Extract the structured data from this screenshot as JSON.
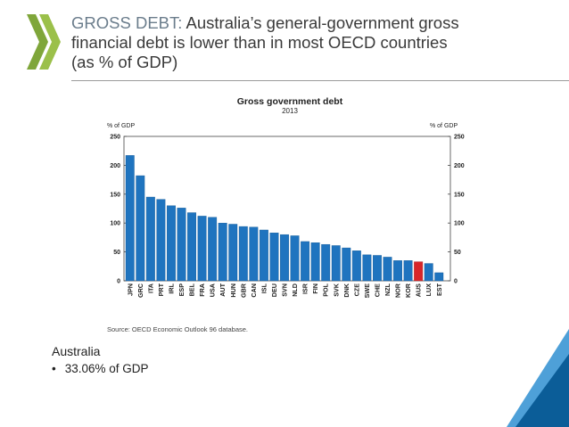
{
  "header": {
    "lead": "GROSS DEBT:",
    "title_line1": " Australia’s general-government gross",
    "title_line2": "financial debt is lower than in most OECD countries",
    "title_line3": "(as % of GDP)"
  },
  "logo": {
    "icon": "oecd-chevrons-icon"
  },
  "colors": {
    "bar": "#1f74bf",
    "highlight": "#d8262a",
    "accent_dark": "#0b4f82",
    "accent_light": "#4ea0d8"
  },
  "chart_data": {
    "type": "bar",
    "title": "Gross government debt",
    "subtitle": "2013",
    "ylabel_left": "% of GDP",
    "ylabel_right": "% of GDP",
    "ylim": [
      0,
      250
    ],
    "yticks": [
      "0",
      "50",
      "100",
      "150",
      "200",
      "250"
    ],
    "categories": [
      "JPN",
      "GRC",
      "ITA",
      "PRT",
      "IRL",
      "ESP",
      "BEL",
      "FRA",
      "USA",
      "AUT",
      "HUN",
      "GBR",
      "CAN",
      "ISL",
      "DEU",
      "SVN",
      "NLD",
      "ISR",
      "FIN",
      "POL",
      "SVK",
      "DNK",
      "CZE",
      "SWE",
      "CHE",
      "NZL",
      "NOR",
      "KOR",
      "AUS",
      "LUX",
      "EST"
    ],
    "values": [
      217,
      182,
      145,
      141,
      130,
      126,
      118,
      112,
      110,
      100,
      98,
      94,
      93,
      88,
      83,
      80,
      78,
      68,
      66,
      63,
      61,
      57,
      52,
      45,
      44,
      41,
      35,
      35,
      33,
      30,
      14
    ],
    "highlight": "AUS",
    "source": "Source: OECD Economic Outlook 96 database."
  },
  "note": {
    "title": "Australia",
    "bullet": "•",
    "text": "33.06% of GDP"
  }
}
